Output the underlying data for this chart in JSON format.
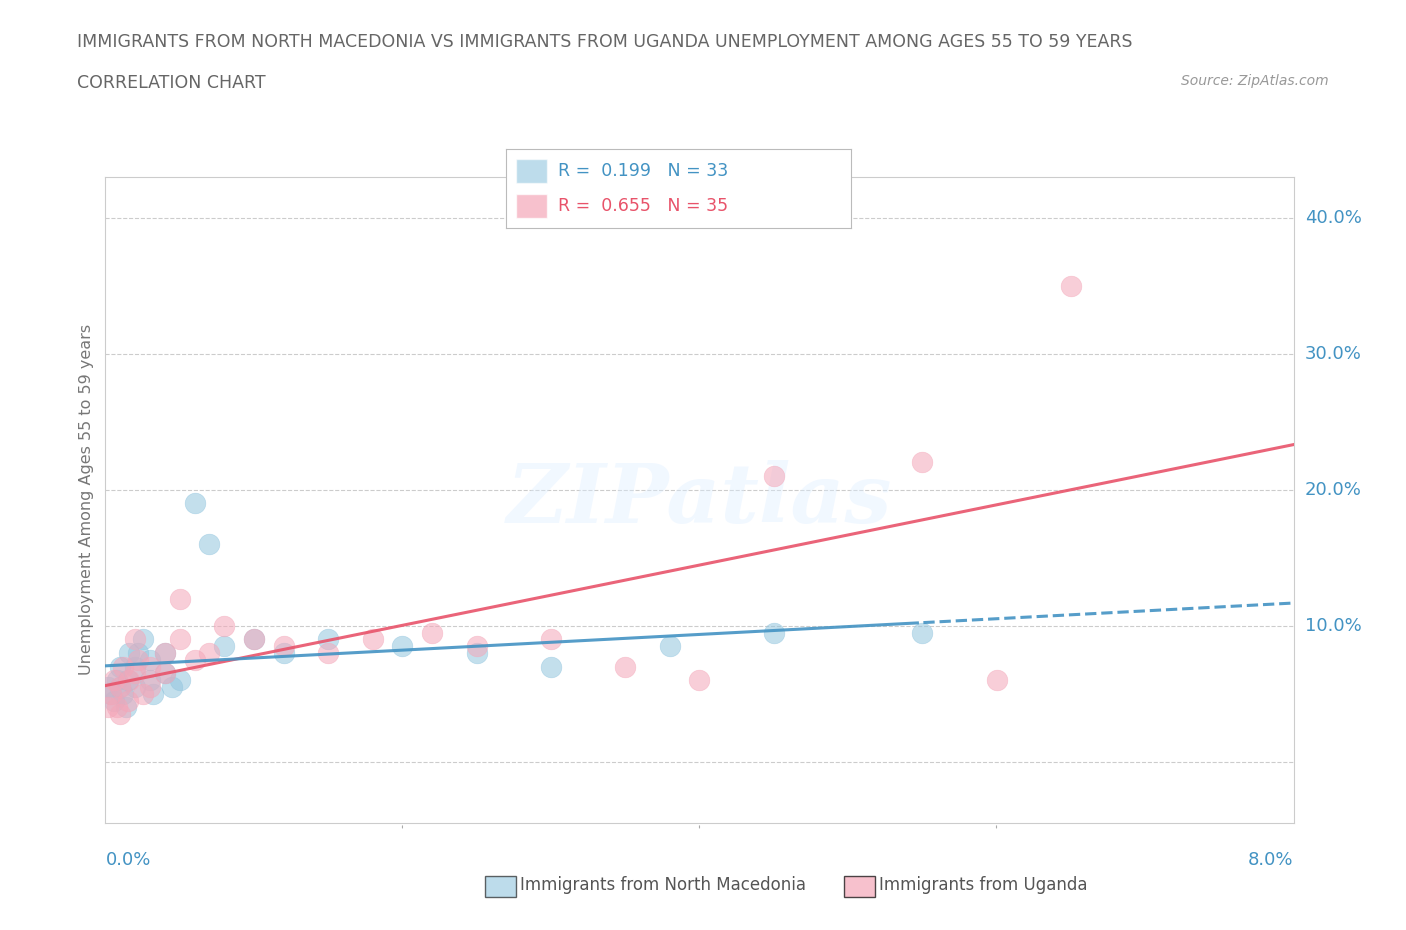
{
  "title_line1": "IMMIGRANTS FROM NORTH MACEDONIA VS IMMIGRANTS FROM UGANDA UNEMPLOYMENT AMONG AGES 55 TO 59 YEARS",
  "title_line2": "CORRELATION CHART",
  "source": "Source: ZipAtlas.com",
  "ylabel": "Unemployment Among Ages 55 to 59 years",
  "xlim": [
    0.0,
    0.08
  ],
  "ylim": [
    -0.045,
    0.43
  ],
  "ytick_values": [
    0.0,
    0.1,
    0.2,
    0.3,
    0.4
  ],
  "ytick_labels": [
    "",
    "10.0%",
    "20.0%",
    "30.0%",
    "40.0%"
  ],
  "xtick_labels": [
    "0.0%",
    "8.0%"
  ],
  "blue_color": "#92c5de",
  "pink_color": "#f4a7b9",
  "blue_line_color": "#4393c3",
  "pink_line_color": "#e8536a",
  "background_color": "#ffffff",
  "grid_color": "#cccccc",
  "title_color": "#666666",
  "tick_color": "#4393c3",
  "watermark": "ZIPatlas",
  "r_mac": 0.199,
  "n_mac": 33,
  "r_uga": 0.655,
  "n_uga": 35,
  "legend_label_blue": "Immigrants from North Macedonia",
  "legend_label_pink": "Immigrants from Uganda",
  "mac_x": [
    0.0002,
    0.0004,
    0.0006,
    0.0008,
    0.001,
    0.001,
    0.0012,
    0.0014,
    0.0015,
    0.0016,
    0.002,
    0.002,
    0.0022,
    0.0025,
    0.003,
    0.003,
    0.0032,
    0.004,
    0.004,
    0.0045,
    0.005,
    0.006,
    0.007,
    0.008,
    0.01,
    0.012,
    0.015,
    0.02,
    0.025,
    0.03,
    0.038,
    0.045,
    0.055
  ],
  "mac_y": [
    0.055,
    0.05,
    0.045,
    0.06,
    0.055,
    0.07,
    0.05,
    0.04,
    0.06,
    0.08,
    0.055,
    0.07,
    0.08,
    0.09,
    0.06,
    0.075,
    0.05,
    0.065,
    0.08,
    0.055,
    0.06,
    0.19,
    0.16,
    0.085,
    0.09,
    0.08,
    0.09,
    0.085,
    0.08,
    0.07,
    0.085,
    0.095,
    0.095
  ],
  "uga_x": [
    0.0002,
    0.0004,
    0.0006,
    0.0008,
    0.001,
    0.001,
    0.0012,
    0.0015,
    0.0016,
    0.002,
    0.002,
    0.0022,
    0.0025,
    0.003,
    0.003,
    0.004,
    0.004,
    0.005,
    0.005,
    0.006,
    0.007,
    0.008,
    0.01,
    0.012,
    0.015,
    0.018,
    0.022,
    0.025,
    0.03,
    0.035,
    0.04,
    0.045,
    0.055,
    0.06,
    0.065
  ],
  "uga_y": [
    0.04,
    0.05,
    0.06,
    0.04,
    0.035,
    0.055,
    0.07,
    0.045,
    0.06,
    0.065,
    0.09,
    0.075,
    0.05,
    0.055,
    0.07,
    0.065,
    0.08,
    0.09,
    0.12,
    0.075,
    0.08,
    0.1,
    0.09,
    0.085,
    0.08,
    0.09,
    0.095,
    0.085,
    0.09,
    0.07,
    0.06,
    0.21,
    0.22,
    0.06,
    0.35
  ]
}
